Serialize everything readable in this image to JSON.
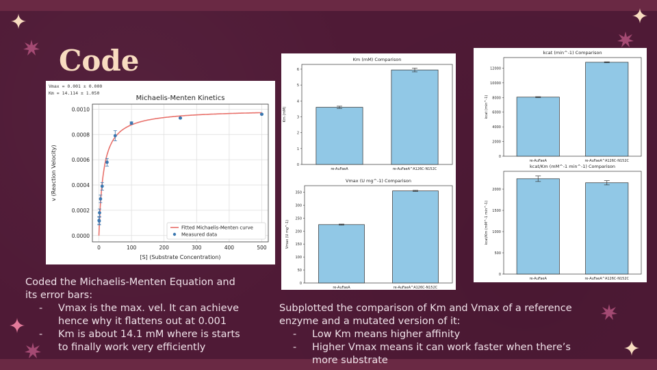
{
  "slide": {
    "title": "Code",
    "left_text": {
      "intro": [
        "Coded the Michaelis-Menten Equation and",
        "its error bars:"
      ],
      "bullets": [
        [
          "Vmax is the max. vel. It can achieve",
          "hence why it flattens out at 0.001"
        ],
        [
          "Km is about 14.1 mM where is starts",
          "to finally work very efficiently"
        ]
      ]
    },
    "right_text": {
      "intro": [
        "Subplotted the comparison of Km and Vmax of a reference",
        "enzyme and a mutated version of it:"
      ],
      "bullets": [
        [
          "Low Km means higher affinity"
        ],
        [
          "Higher Vmax means it can work faster when there’s",
          "more substrate"
        ]
      ]
    },
    "colors": {
      "background": "#4f1a36",
      "title": "#f8dcc0",
      "text": "#f1e3ea",
      "bar_fill": "#91c8e6",
      "fit_line": "#e8706a",
      "points": "#3a77b0"
    }
  },
  "chart_data": [
    {
      "type": "scatter",
      "title": "Michaelis-Menten Kinetics",
      "annotations": [
        "Vmax = 0.001 ± 0.000",
        "Km = 14.114 ± 1.050"
      ],
      "xlabel": "[S] (Substrate Concentration)",
      "ylabel": "v (Reaction Velocity)",
      "xlim": [
        -20,
        520
      ],
      "ylim": [
        -5e-05,
        0.00104
      ],
      "xticks": [
        0,
        100,
        200,
        300,
        400,
        500
      ],
      "yticks": [
        0.0,
        0.0002,
        0.0004,
        0.0006,
        0.0008,
        0.001
      ],
      "ytick_labels": [
        "0.0000",
        "0.0002",
        "0.0004",
        "0.0006",
        "0.0008",
        "0.0010"
      ],
      "grid": true,
      "legend_position": "bottom-right",
      "series": [
        {
          "name": "Measured data",
          "x": [
            0.5,
            1,
            2,
            5,
            10,
            25,
            50,
            100,
            250,
            500
          ],
          "y": [
            0.00012,
            0.000115,
            0.00018,
            0.00029,
            0.00039,
            0.00058,
            0.00079,
            0.00089,
            0.00093,
            0.00096
          ],
          "error": [
            3e-05,
            3e-05,
            3e-05,
            3e-05,
            3e-05,
            3e-05,
            4e-05,
            1e-05,
            5e-06,
            5e-06
          ]
        },
        {
          "name": "Fitted Michaelis-Menten curve",
          "vmax": 0.001,
          "km": 14.114
        }
      ]
    },
    {
      "type": "bar",
      "title": "Km (mM) Comparison",
      "ylabel": "Km (mM)",
      "categories": [
        "re-AuFaeA",
        "re-AuFaeA^A126C-N152C"
      ],
      "values": [
        3.6,
        5.95
      ],
      "errors": [
        0.07,
        0.12
      ],
      "ylim": [
        0,
        6.3
      ],
      "yticks": [
        0,
        1,
        2,
        3,
        4,
        5,
        6
      ]
    },
    {
      "type": "bar",
      "title": "Vmax (U mg^-1) Comparison",
      "ylabel": "Vmax (U mg^-1)",
      "categories": [
        "re-AuFaeA",
        "re-AuFaeA^A126C-N152C"
      ],
      "values": [
        225,
        355
      ],
      "errors": [
        2,
        2
      ],
      "ylim": [
        0,
        375
      ],
      "yticks": [
        0,
        50,
        100,
        150,
        200,
        250,
        300,
        350
      ]
    },
    {
      "type": "bar",
      "title": "kcat (min^-1) Comparison",
      "ylabel": "kcat (min^-1)",
      "categories": [
        "re-AuFaeA",
        "re-AuFaeA^A126C-N152C"
      ],
      "values": [
        8050,
        12800
      ],
      "errors": [
        60,
        60
      ],
      "ylim": [
        0,
        13440
      ],
      "yticks": [
        0,
        2000,
        4000,
        6000,
        8000,
        10000,
        12000
      ]
    },
    {
      "type": "bar",
      "title": "kcat/Km (mM^-1 min^-1) Comparison",
      "ylabel": "kcat/Km (mM^-1 min^-1)",
      "categories": [
        "re-AuFaeA",
        "re-AuFaeA^A126C-N152C"
      ],
      "values": [
        2245,
        2150
      ],
      "errors": [
        65,
        50
      ],
      "ylim": [
        0,
        2420
      ],
      "yticks": [
        0,
        500,
        1000,
        1500,
        2000
      ]
    }
  ]
}
